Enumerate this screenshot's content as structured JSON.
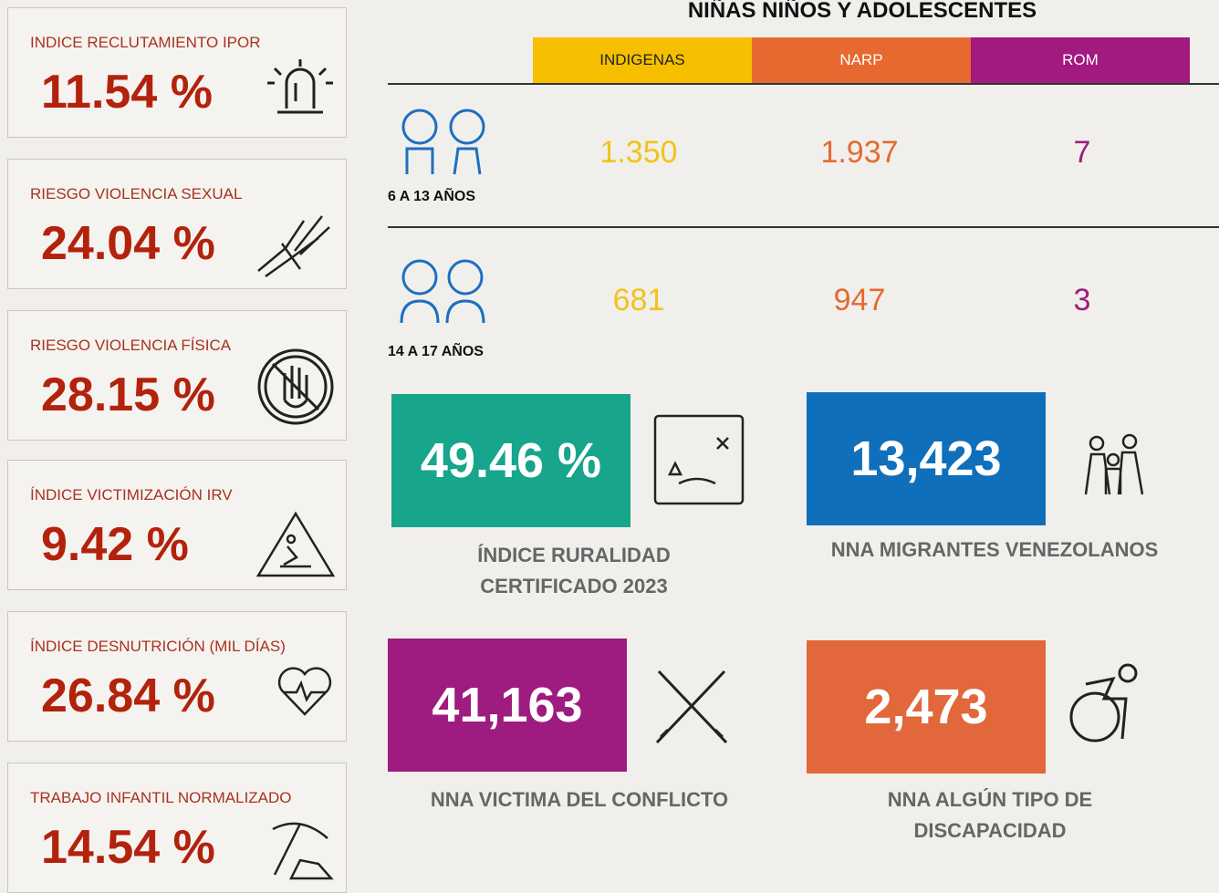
{
  "header": {
    "title": "NIÑAS NIÑOS Y ADOLESCENTES"
  },
  "indicators": [
    {
      "label": "INDICE RECLUTAMIENTO IPOR",
      "value": "11.54 %"
    },
    {
      "label": "RIESGO VIOLENCIA SEXUAL",
      "value": "24.04 %"
    },
    {
      "label": "RIESGO VIOLENCIA FÍSICA",
      "value": "28.15 %"
    },
    {
      "label": "ÍNDICE VICTIMIZACIÓN IRV",
      "value": "9.42 %"
    },
    {
      "label": "ÍNDICE DESNUTRICIÓN (MIL DÍAS)",
      "value": "26.84 %"
    },
    {
      "label": "TRABAJO INFANTIL NORMALIZADO",
      "value": "14.54 %"
    }
  ],
  "table": {
    "columns": [
      "INDIGENAS",
      "NARP",
      "ROM"
    ],
    "rows": [
      {
        "label": "6 A 13 AÑOS",
        "cells": [
          "1.350",
          "1.937",
          "7"
        ]
      },
      {
        "label": "14 A 17 AÑOS",
        "cells": [
          "681",
          "947",
          "3"
        ]
      }
    ]
  },
  "tiles": [
    {
      "value": "49.46 %",
      "caption": "ÍNDICE RURALIDAD CERTIFICADO 2023"
    },
    {
      "value": "13,423",
      "caption": "NNA MIGRANTES VENEZOLANOS"
    },
    {
      "value": "41,163",
      "caption": "NNA VICTIMA DEL CONFLICTO"
    },
    {
      "value": "2,473",
      "caption": "NNA ALGÚN TIPO DE DISCAPACIDAD"
    }
  ]
}
